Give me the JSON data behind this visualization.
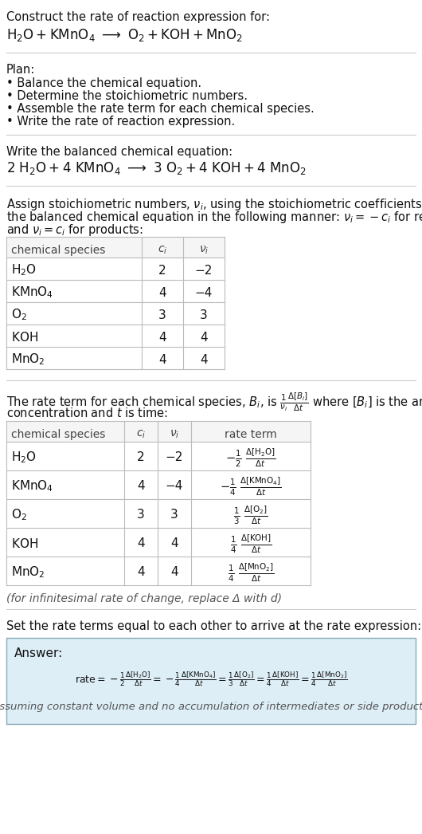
{
  "bg_color": "#ffffff",
  "table_border": "#bbbbbb",
  "answer_bg": "#ddeef6",
  "answer_border": "#88aabb",
  "title_text": "Construct the rate of reaction expression for:",
  "plan_header": "Plan:",
  "plan_items": [
    "• Balance the chemical equation.",
    "• Determine the stoichiometric numbers.",
    "• Assemble the rate term for each chemical species.",
    "• Write the rate of reaction expression."
  ],
  "balanced_header": "Write the balanced chemical equation:",
  "set_rate_text": "Set the rate terms equal to each other to arrive at the rate expression:",
  "answer_label": "Answer:",
  "footnote": "(assuming constant volume and no accumulation of intermediates or side products)",
  "infinitesimal_note": "(for infinitesimal rate of change, replace Δ with d)",
  "table1_rows": [
    [
      "H_2O",
      "2",
      "−2"
    ],
    [
      "KMnO_4",
      "4",
      "−4"
    ],
    [
      "O_2",
      "3",
      "3"
    ],
    [
      "KOH",
      "4",
      "4"
    ],
    [
      "MnO_2",
      "4",
      "4"
    ]
  ],
  "table2_rows": [
    [
      "H_2O",
      "2",
      "−2"
    ],
    [
      "KMnO_4",
      "4",
      "−4"
    ],
    [
      "O_2",
      "3",
      "3"
    ],
    [
      "KOH",
      "4",
      "4"
    ],
    [
      "MnO_2",
      "4",
      "4"
    ]
  ]
}
